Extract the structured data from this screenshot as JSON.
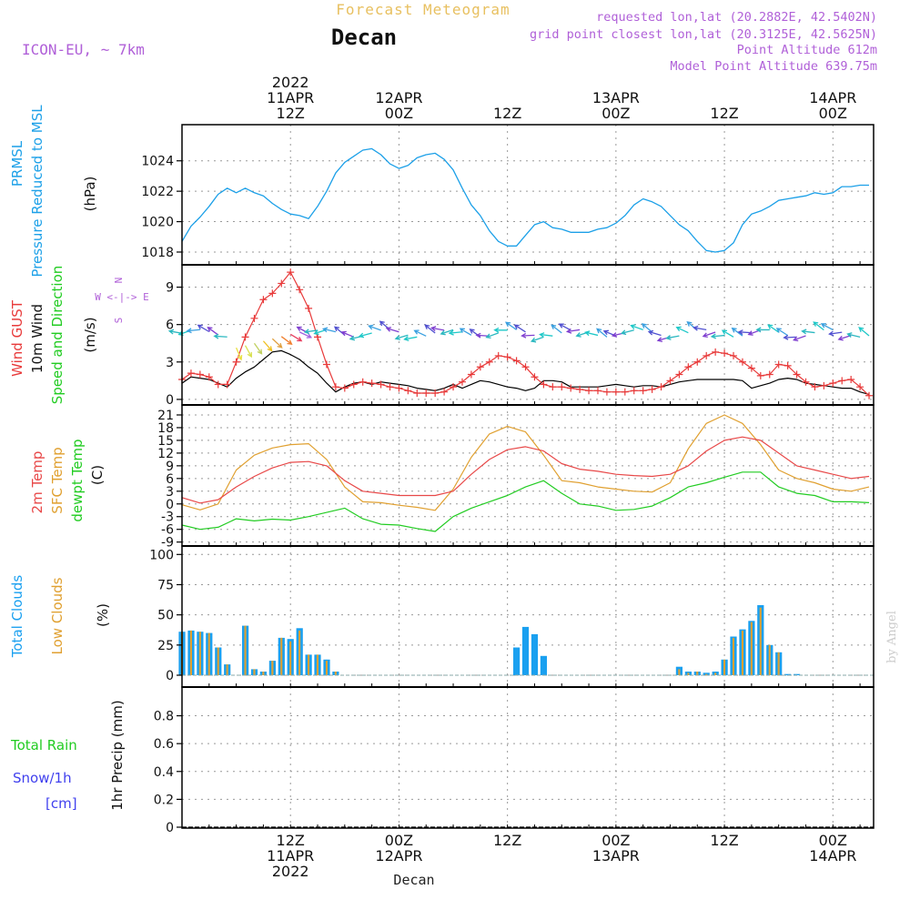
{
  "header": {
    "title": "Forecast Meteogram",
    "location": "Decan",
    "model": "ICON-EU, ~ 7km",
    "requested": "requested lon,lat (20.2882E, 42.5402N)",
    "grid_point": "grid point closest lon,lat (20.3125E, 42.5625N)",
    "point_altitude": "Point Altitude 612m",
    "model_altitude": "Model Point Altitude 639.75m",
    "footer_location": "Decan",
    "watermark": "by Angel"
  },
  "colors": {
    "pressure": "#1ca0e8",
    "gust": "#e83a3a",
    "wind": "#000000",
    "temp2m": "#e84848",
    "sfc": "#e0a030",
    "dewpt": "#22cc22",
    "total_clouds": "#1aa0f0",
    "low_clouds": "#e0a030",
    "rain": "#22cc22",
    "snow": "#4040ee",
    "header_purple": "#b060d8",
    "title_gold": "#e8c060"
  },
  "time_axis": {
    "top_labels": [
      {
        "t": 12,
        "lines": [
          "2022",
          "11APR",
          "12Z"
        ]
      },
      {
        "t": 24,
        "lines": [
          "12APR",
          "00Z"
        ]
      },
      {
        "t": 36,
        "lines": [
          "12Z"
        ]
      },
      {
        "t": 48,
        "lines": [
          "13APR",
          "00Z"
        ]
      },
      {
        "t": 60,
        "lines": [
          "12Z"
        ]
      },
      {
        "t": 72,
        "lines": [
          "14APR",
          "00Z"
        ]
      }
    ],
    "bottom_labels": [
      {
        "t": 12,
        "lines": [
          "12Z",
          "11APR",
          "2022"
        ]
      },
      {
        "t": 24,
        "lines": [
          "00Z",
          "12APR"
        ]
      },
      {
        "t": 36,
        "lines": [
          "12Z"
        ]
      },
      {
        "t": 48,
        "lines": [
          "00Z",
          "13APR"
        ]
      },
      {
        "t": 60,
        "lines": [
          "12Z"
        ]
      },
      {
        "t": 72,
        "lines": [
          "00Z",
          "14APR"
        ]
      }
    ]
  },
  "chart_data": [
    {
      "type": "line",
      "id": "pressure",
      "labels": [
        "PRMSL",
        "Pressure Reduced to MSL",
        "(hPa)"
      ],
      "ylim": [
        1017.4,
        1025.3
      ],
      "yticks": [
        1018,
        1020,
        1022,
        1024
      ],
      "series": [
        {
          "name": "PRMSL",
          "x": [
            0,
            1,
            2,
            3,
            4,
            5,
            6,
            7,
            8,
            9,
            10,
            11,
            12,
            13,
            14,
            15,
            16,
            17,
            18,
            19,
            20,
            21,
            22,
            23,
            24,
            25,
            26,
            27,
            28,
            29,
            30,
            31,
            32,
            33,
            34,
            35,
            36,
            37,
            38,
            39,
            40,
            41,
            42,
            43,
            44,
            45,
            46,
            47,
            48,
            49,
            50,
            51,
            52,
            53,
            54,
            55,
            56,
            57,
            58,
            59,
            60,
            61,
            62,
            63,
            64,
            65,
            66,
            67,
            68,
            69,
            70,
            71,
            72,
            73,
            74,
            75,
            76
          ],
          "y": [
            1018.7,
            1019.7,
            1020.3,
            1021.0,
            1021.8,
            1022.2,
            1021.9,
            1022.2,
            1021.9,
            1021.7,
            1021.2,
            1020.8,
            1020.5,
            1020.4,
            1020.2,
            1021.0,
            1022.0,
            1023.2,
            1023.9,
            1024.3,
            1024.7,
            1024.8,
            1024.4,
            1023.8,
            1023.5,
            1023.7,
            1024.2,
            1024.4,
            1024.5,
            1024.1,
            1023.4,
            1022.2,
            1021.1,
            1020.4,
            1019.4,
            1018.7,
            1018.4,
            1018.4,
            1019.1,
            1019.8,
            1020.0,
            1019.6,
            1019.5,
            1019.3,
            1019.3,
            1019.3,
            1019.5,
            1019.6,
            1019.9,
            1020.4,
            1021.1,
            1021.5,
            1021.3,
            1021.0,
            1020.4,
            1019.8,
            1019.4,
            1018.7,
            1018.1,
            1018.0,
            1018.1,
            1018.6,
            1019.8,
            1020.5,
            1020.7,
            1021.0,
            1021.4,
            1021.5,
            1021.6,
            1021.7,
            1021.9,
            1021.8,
            1021.9,
            1022.3,
            1022.3,
            1022.4,
            1022.4
          ]
        }
      ]
    },
    {
      "type": "line",
      "id": "wind",
      "labels": [
        "Wind GUST",
        "10m Wind",
        "Speed and Direction",
        "(m/s)"
      ],
      "compass": [
        "N",
        "W <-|-> E",
        "S"
      ],
      "ylim": [
        -0.3,
        10.5
      ],
      "yticks": [
        0,
        3,
        6,
        9
      ],
      "series": [
        {
          "name": "Wind GUST",
          "x": [
            0,
            1,
            2,
            3,
            4,
            5,
            6,
            7,
            8,
            9,
            10,
            11,
            12,
            13,
            14,
            15,
            16,
            17,
            18,
            19,
            20,
            21,
            22,
            23,
            24,
            25,
            26,
            27,
            28,
            29,
            30,
            31,
            32,
            33,
            34,
            35,
            36,
            37,
            38,
            39,
            40,
            41,
            42,
            43,
            44,
            45,
            46,
            47,
            48,
            49,
            50,
            51,
            52,
            53,
            54,
            55,
            56,
            57,
            58,
            59,
            60,
            61,
            62,
            63,
            64,
            65,
            66,
            67,
            68,
            69,
            70,
            71,
            72,
            73,
            74,
            75,
            76
          ],
          "y": [
            1.6,
            2.1,
            2.0,
            1.8,
            1.2,
            1.2,
            3.0,
            5.0,
            6.5,
            8.0,
            8.5,
            9.3,
            10.2,
            8.8,
            7.3,
            5.0,
            2.8,
            1.0,
            0.9,
            1.2,
            1.4,
            1.3,
            1.2,
            1.0,
            0.9,
            0.7,
            0.5,
            0.5,
            0.5,
            0.6,
            1.0,
            1.4,
            2.0,
            2.6,
            3.0,
            3.5,
            3.4,
            3.1,
            2.6,
            1.8,
            1.2,
            1.0,
            1.0,
            0.9,
            0.8,
            0.7,
            0.7,
            0.6,
            0.6,
            0.6,
            0.7,
            0.7,
            0.8,
            1.0,
            1.5,
            2.0,
            2.6,
            3.0,
            3.5,
            3.8,
            3.7,
            3.5,
            3.0,
            2.5,
            1.9,
            2.0,
            2.8,
            2.7,
            2.0,
            1.4,
            1.0,
            1.1,
            1.3,
            1.5,
            1.6,
            1.0,
            0.3
          ]
        },
        {
          "name": "10m Wind",
          "x": [
            0,
            1,
            2,
            3,
            4,
            5,
            6,
            7,
            8,
            9,
            10,
            11,
            12,
            13,
            14,
            15,
            16,
            17,
            18,
            19,
            20,
            21,
            22,
            23,
            24,
            25,
            26,
            27,
            28,
            29,
            30,
            31,
            32,
            33,
            34,
            35,
            36,
            37,
            38,
            39,
            40,
            41,
            42,
            43,
            44,
            45,
            46,
            47,
            48,
            49,
            50,
            51,
            52,
            53,
            54,
            55,
            56,
            57,
            58,
            59,
            60,
            61,
            62,
            63,
            64,
            65,
            66,
            67,
            68,
            69,
            70,
            71,
            72,
            73,
            74,
            75,
            76
          ],
          "y": [
            1.3,
            1.8,
            1.7,
            1.6,
            1.3,
            1.0,
            1.7,
            2.2,
            2.6,
            3.2,
            3.8,
            3.9,
            3.6,
            3.2,
            2.6,
            2.1,
            1.3,
            0.6,
            1.0,
            1.3,
            1.4,
            1.2,
            1.4,
            1.3,
            1.2,
            1.1,
            0.9,
            0.8,
            0.7,
            0.9,
            1.2,
            0.9,
            1.2,
            1.5,
            1.4,
            1.2,
            1.0,
            0.9,
            0.7,
            0.9,
            1.5,
            1.5,
            1.4,
            1.0,
            1.0,
            1.0,
            1.0,
            1.1,
            1.2,
            1.1,
            1.0,
            1.1,
            1.1,
            1.0,
            1.2,
            1.4,
            1.5,
            1.6,
            1.6,
            1.6,
            1.6,
            1.6,
            1.5,
            0.9,
            1.1,
            1.3,
            1.6,
            1.7,
            1.6,
            1.3,
            1.2,
            1.1,
            1.0,
            0.9,
            0.9,
            0.6,
            0.4
          ]
        }
      ]
    },
    {
      "type": "line",
      "id": "temperature",
      "labels": [
        "2m Temp",
        "SFC Temp",
        "dewpt Temp",
        "(C)"
      ],
      "ylim": [
        -9.5,
        22.5
      ],
      "yticks": [
        -9,
        -6,
        -3,
        0,
        3,
        6,
        9,
        12,
        15,
        18,
        21
      ],
      "series": [
        {
          "name": "2m Temp",
          "x": [
            0,
            2,
            4,
            6,
            8,
            10,
            12,
            14,
            16,
            18,
            20,
            22,
            24,
            26,
            28,
            30,
            32,
            34,
            36,
            38,
            40,
            42,
            44,
            46,
            48,
            50,
            52,
            54,
            56,
            58,
            60,
            62,
            64,
            66,
            68,
            70,
            72,
            74,
            76
          ],
          "y": [
            1.5,
            0.2,
            1.0,
            4.0,
            6.5,
            8.5,
            9.8,
            10.0,
            9.0,
            5.5,
            3.0,
            2.5,
            2.0,
            2.0,
            2.0,
            3.0,
            7.0,
            10.5,
            12.8,
            13.5,
            12.5,
            9.5,
            8.2,
            7.7,
            7.0,
            6.7,
            6.5,
            7.0,
            9.0,
            12.5,
            15.0,
            15.8,
            15.0,
            12.0,
            9.0,
            8.0,
            7.0,
            6.0,
            6.5
          ]
        },
        {
          "name": "SFC Temp",
          "x": [
            0,
            2,
            4,
            6,
            8,
            10,
            12,
            14,
            16,
            18,
            20,
            22,
            24,
            26,
            28,
            30,
            32,
            34,
            36,
            38,
            40,
            42,
            44,
            46,
            48,
            50,
            52,
            54,
            56,
            58,
            60,
            62,
            64,
            66,
            68,
            70,
            72,
            74,
            76
          ],
          "y": [
            -0.2,
            -1.4,
            0.0,
            8.0,
            11.5,
            13.2,
            14.0,
            14.2,
            10.5,
            4.0,
            0.5,
            0.3,
            -0.3,
            -0.8,
            -1.5,
            3.5,
            11.0,
            16.5,
            18.3,
            17.0,
            11.5,
            5.5,
            5.0,
            4.0,
            3.5,
            3.0,
            2.8,
            5.0,
            13.0,
            19.0,
            21.0,
            19.0,
            14.0,
            8.0,
            6.0,
            5.0,
            3.5,
            3.0,
            4.0
          ]
        },
        {
          "name": "dewpt Temp",
          "x": [
            0,
            2,
            4,
            6,
            8,
            10,
            12,
            14,
            16,
            18,
            20,
            22,
            24,
            26,
            28,
            30,
            32,
            34,
            36,
            38,
            40,
            42,
            44,
            46,
            48,
            50,
            52,
            54,
            56,
            58,
            60,
            62,
            64,
            66,
            68,
            70,
            72,
            74,
            76
          ],
          "y": [
            -5.0,
            -6.0,
            -5.5,
            -3.5,
            -4.0,
            -3.6,
            -3.8,
            -3.0,
            -2.0,
            -1.0,
            -3.5,
            -4.8,
            -5.0,
            -5.8,
            -6.5,
            -3.0,
            -1.0,
            0.5,
            2.0,
            4.0,
            5.5,
            2.5,
            0.0,
            -0.5,
            -1.5,
            -1.3,
            -0.5,
            1.5,
            4.0,
            5.0,
            6.3,
            7.5,
            7.5,
            4.0,
            2.5,
            2.0,
            0.5,
            0.5,
            0.3
          ]
        }
      ]
    },
    {
      "type": "bar",
      "id": "clouds",
      "labels": [
        "Total Clouds",
        "Low Clouds",
        "(%)"
      ],
      "ylim": [
        0,
        104
      ],
      "yticks": [
        0,
        25,
        50,
        75,
        100
      ],
      "series": [
        {
          "name": "Total Clouds",
          "x": [
            0,
            1,
            2,
            3,
            4,
            5,
            7,
            8,
            9,
            10,
            11,
            12,
            13,
            14,
            15,
            16,
            17,
            37,
            38,
            39,
            40,
            55,
            56,
            57,
            58,
            59,
            60,
            61,
            62,
            63,
            64,
            65,
            66,
            67,
            68
          ],
          "y": [
            36,
            37,
            36,
            35,
            23,
            9,
            41,
            5,
            3,
            12,
            31,
            30,
            39,
            17,
            17,
            13,
            3,
            23,
            40,
            34,
            16,
            7,
            3,
            3,
            2,
            3,
            13,
            32,
            38,
            45,
            58,
            25,
            19,
            1,
            1
          ]
        },
        {
          "name": "Low Clouds",
          "x": [
            0,
            1,
            2,
            3,
            4,
            5,
            7,
            8,
            9,
            10,
            11,
            12,
            13,
            14,
            15,
            16,
            17,
            55,
            56,
            57,
            58,
            59,
            60,
            61,
            62,
            63,
            64,
            65,
            66
          ],
          "y": [
            36,
            37,
            36,
            35,
            23,
            9,
            41,
            5,
            3,
            12,
            31,
            28,
            37,
            17,
            17,
            12,
            3,
            5,
            2,
            3,
            1,
            2,
            13,
            31,
            37,
            44,
            56,
            25,
            19
          ]
        }
      ]
    },
    {
      "type": "bar",
      "id": "precip",
      "labels": [
        "Total  Rain",
        "Snow/1h",
        "[cm]",
        "1hr Precip (mm)"
      ],
      "ylim": [
        0,
        0.98
      ],
      "yticks": [
        0,
        0.2,
        0.4,
        0.6,
        0.8
      ],
      "series": [
        {
          "name": "Total Rain",
          "x": [],
          "y": []
        }
      ]
    }
  ]
}
